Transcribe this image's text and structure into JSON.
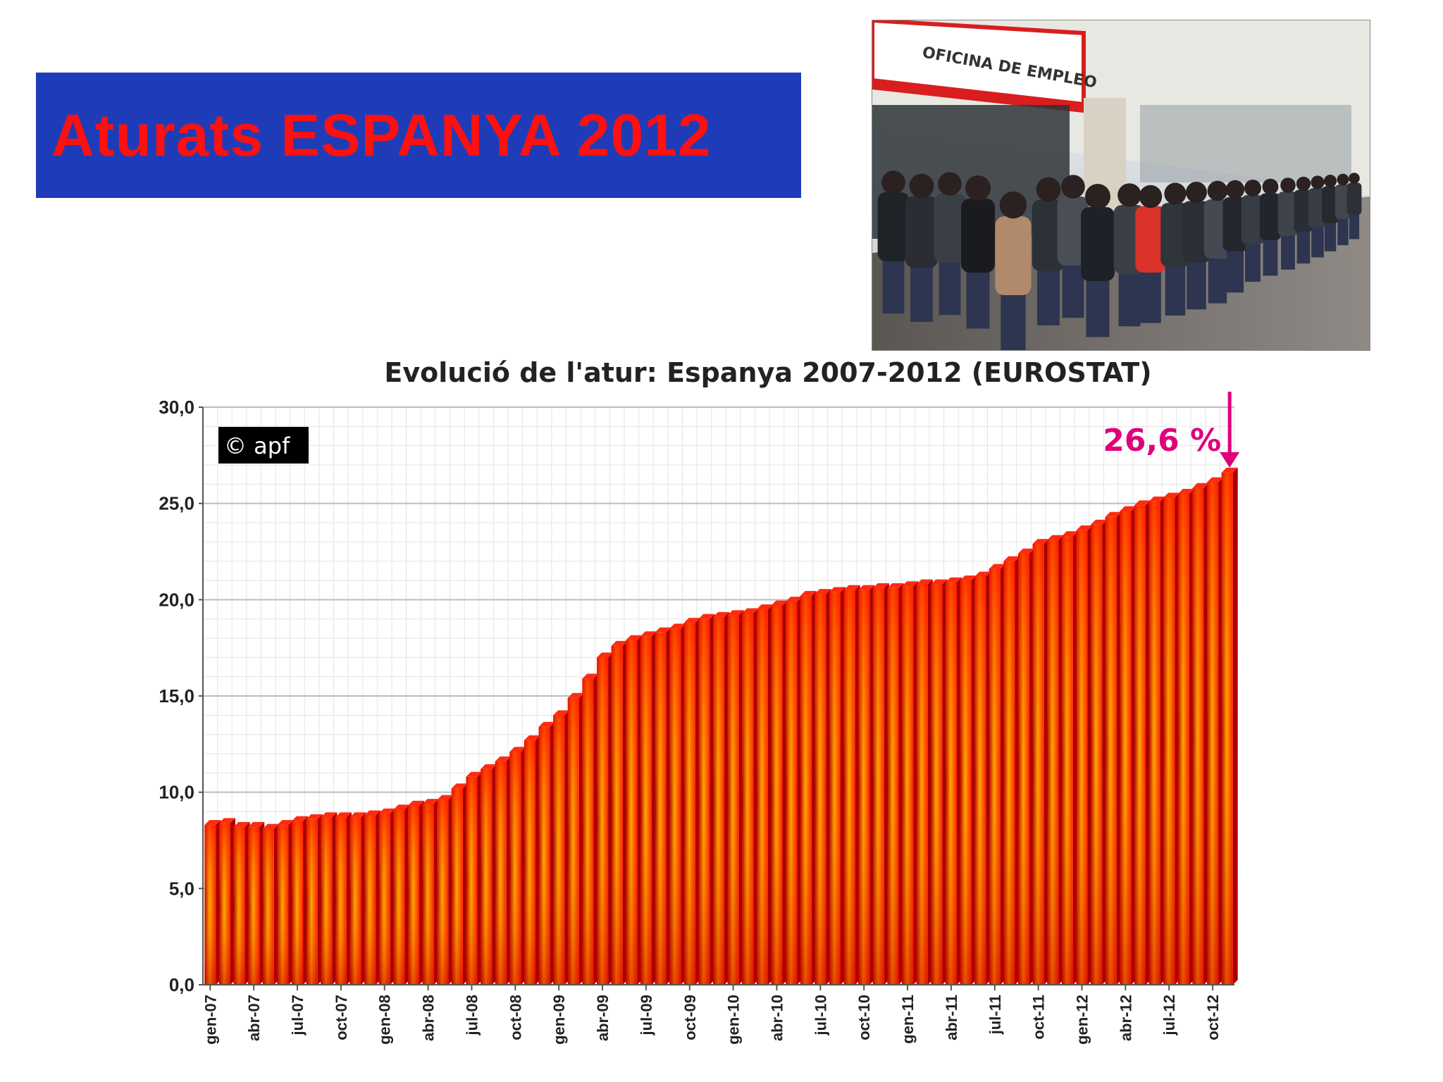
{
  "banner": {
    "title": "Aturats ESPANYA 2012"
  },
  "photo": {
    "sign_text": "OFICINA DE EMPLEO",
    "colors": {
      "sign_red": "#d81e1e",
      "wall": "#e8e8e2",
      "ground": "#6d6a66"
    }
  },
  "chart_data": {
    "type": "bar",
    "title": "Evolució de l'atur: Espanya 2007-2012 (EUROSTAT)",
    "xlabel": "",
    "ylabel": "",
    "ylim": [
      0,
      30
    ],
    "yticks": [
      "0,0",
      "5,0",
      "10,0",
      "15,0",
      "20,0",
      "25,0",
      "30,0"
    ],
    "grid": true,
    "watermark": "© apf",
    "annotation": {
      "text": "26,6 %",
      "color": "#e0007a"
    },
    "categories": [
      "gen-07",
      "feb-07",
      "mar-07",
      "abr-07",
      "mai-07",
      "jun-07",
      "jul-07",
      "ago-07",
      "set-07",
      "oct-07",
      "nov-07",
      "des-07",
      "gen-08",
      "feb-08",
      "mar-08",
      "abr-08",
      "mai-08",
      "jun-08",
      "jul-08",
      "ago-08",
      "set-08",
      "oct-08",
      "nov-08",
      "des-08",
      "gen-09",
      "feb-09",
      "mar-09",
      "abr-09",
      "mai-09",
      "jun-09",
      "jul-09",
      "ago-09",
      "set-09",
      "oct-09",
      "nov-09",
      "des-09",
      "gen-10",
      "feb-10",
      "mar-10",
      "abr-10",
      "mai-10",
      "jun-10",
      "jul-10",
      "ago-10",
      "set-10",
      "oct-10",
      "nov-10",
      "des-10",
      "gen-11",
      "feb-11",
      "mar-11",
      "abr-11",
      "mai-11",
      "jun-11",
      "jul-11",
      "ago-11",
      "set-11",
      "oct-11",
      "nov-11",
      "des-11",
      "gen-12",
      "feb-12",
      "mar-12",
      "abr-12",
      "mai-12",
      "jun-12",
      "jul-12",
      "ago-12",
      "set-12",
      "oct-12",
      "nov-12"
    ],
    "tick_labels": [
      "gen-07",
      "abr-07",
      "jul-07",
      "oct-07",
      "gen-08",
      "abr-08",
      "jul-08",
      "oct-08",
      "gen-09",
      "abr-09",
      "jul-09",
      "oct-09",
      "gen-10",
      "abr-10",
      "jul-10",
      "oct-10",
      "gen-11",
      "abr-11",
      "jul-11",
      "oct-11",
      "gen-12",
      "abr-12",
      "jul-12",
      "oct-12"
    ],
    "values": [
      8.3,
      8.4,
      8.2,
      8.2,
      8.1,
      8.3,
      8.5,
      8.6,
      8.7,
      8.7,
      8.7,
      8.8,
      8.9,
      9.1,
      9.3,
      9.4,
      9.6,
      10.2,
      10.8,
      11.2,
      11.6,
      12.1,
      12.7,
      13.4,
      14.0,
      14.9,
      15.9,
      17.0,
      17.6,
      17.9,
      18.1,
      18.3,
      18.5,
      18.8,
      19.0,
      19.1,
      19.2,
      19.3,
      19.5,
      19.7,
      19.9,
      20.2,
      20.3,
      20.4,
      20.5,
      20.5,
      20.6,
      20.6,
      20.7,
      20.8,
      20.8,
      20.9,
      21.0,
      21.2,
      21.6,
      22.0,
      22.4,
      22.9,
      23.1,
      23.3,
      23.6,
      23.9,
      24.3,
      24.6,
      24.9,
      25.1,
      25.3,
      25.5,
      25.8,
      26.1,
      26.6
    ],
    "colors": {
      "bar_top": "#ff1a00",
      "bar_mid": "#ffa800",
      "bar_edge": "#b80000"
    }
  }
}
